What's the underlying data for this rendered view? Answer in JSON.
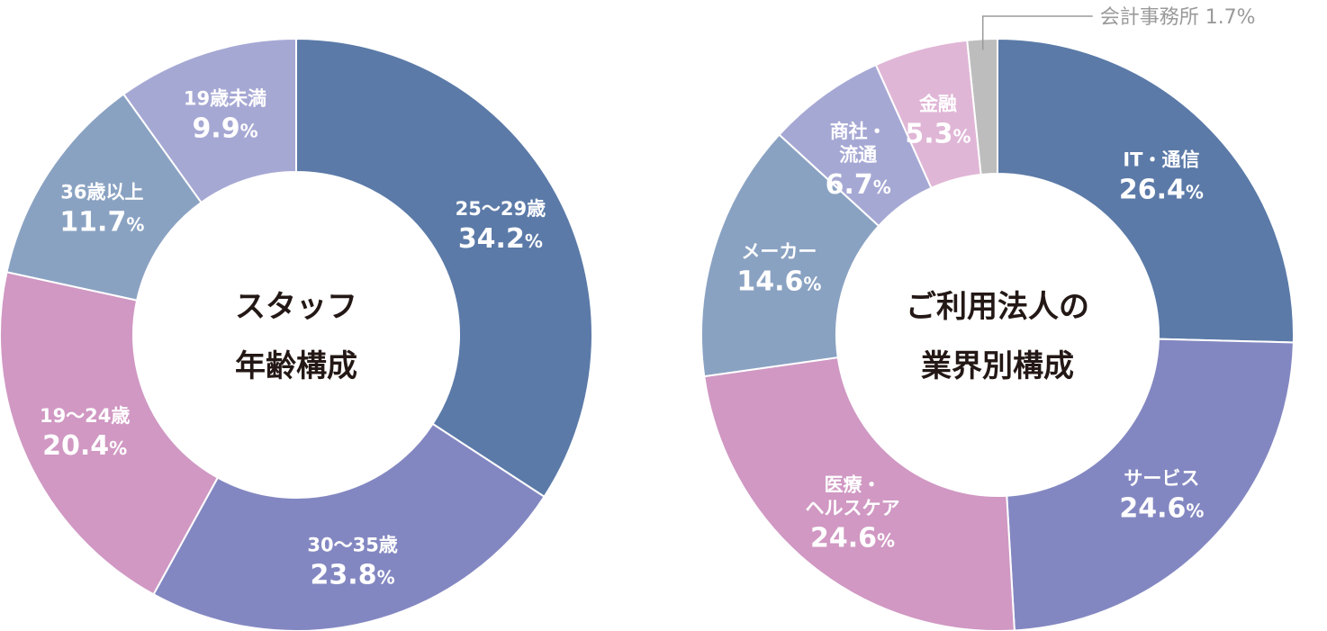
{
  "chart_data": [
    {
      "type": "pie",
      "title": "スタッフ年齢構成",
      "center_lines": [
        "スタッフ",
        "年齢構成"
      ],
      "slices": [
        {
          "label_lines": [
            "25〜29歳"
          ],
          "value": 34.2,
          "value_text": "34.2",
          "unit": "%",
          "color": "#5b7aa8"
        },
        {
          "label_lines": [
            "30〜35歳"
          ],
          "value": 23.8,
          "value_text": "23.8",
          "unit": "%",
          "color": "#8387c1"
        },
        {
          "label_lines": [
            "19〜24歳"
          ],
          "value": 20.4,
          "value_text": "20.4",
          "unit": "%",
          "color": "#d098c3"
        },
        {
          "label_lines": [
            "36歳以上"
          ],
          "value": 11.7,
          "value_text": "11.7",
          "unit": "%",
          "color": "#8aa2c2"
        },
        {
          "label_lines": [
            "19歳未満"
          ],
          "value": 9.9,
          "value_text": "9.9",
          "unit": "%",
          "color": "#a6a8d4"
        }
      ]
    },
    {
      "type": "pie",
      "title": "ご利用法人の業界別構成",
      "center_lines": [
        "ご利用法人の",
        "業界別構成"
      ],
      "slices": [
        {
          "label_lines": [
            "IT・通信"
          ],
          "value": 26.4,
          "value_text": "26.4",
          "unit": "%",
          "color": "#5b7aa8"
        },
        {
          "label_lines": [
            "サービス"
          ],
          "value": 24.6,
          "value_text": "24.6",
          "unit": "%",
          "color": "#8387c1"
        },
        {
          "label_lines": [
            "医療・",
            "ヘルスケア"
          ],
          "value": 24.6,
          "value_text": "24.6",
          "unit": "%",
          "color": "#d098c3"
        },
        {
          "label_lines": [
            "メーカー"
          ],
          "value": 14.6,
          "value_text": "14.6",
          "unit": "%",
          "color": "#8aa2c2"
        },
        {
          "label_lines": [
            "商社・",
            "流通"
          ],
          "value": 6.7,
          "value_text": "6.7",
          "unit": "%",
          "color": "#a6a8d4"
        },
        {
          "label_lines": [
            "金融"
          ],
          "value": 5.3,
          "value_text": "5.3",
          "unit": "%",
          "color": "#e0b6d6"
        },
        {
          "label_lines": [
            "会計事務所"
          ],
          "value": 1.7,
          "value_text": "1.7",
          "unit": "%",
          "color": "#bdbdbd",
          "external": true
        }
      ]
    }
  ]
}
